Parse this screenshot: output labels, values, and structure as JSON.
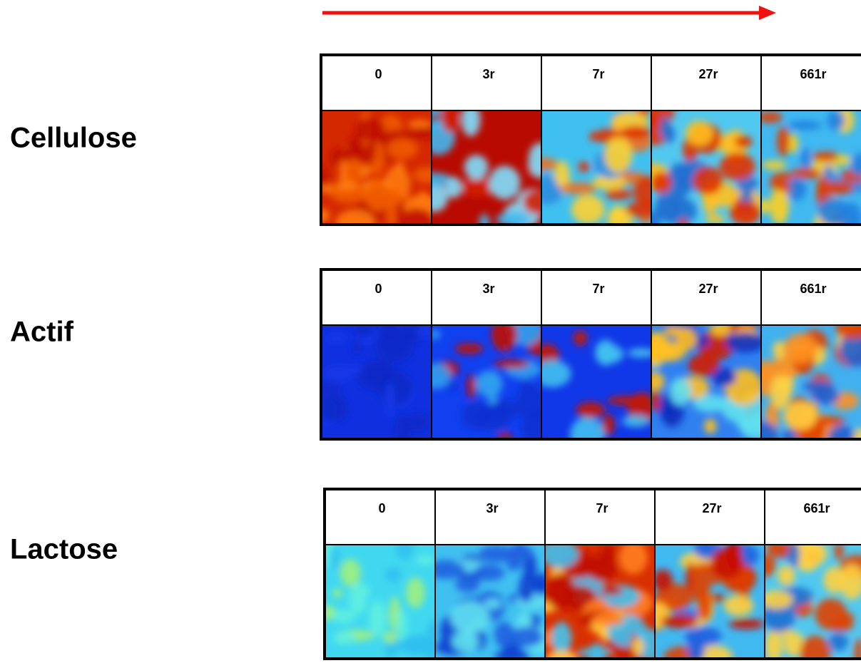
{
  "rows": [
    {
      "label": "Cellulose",
      "columns": [
        "0",
        "3r",
        "7r",
        "27r",
        "661r"
      ]
    },
    {
      "label": "Actif",
      "columns": [
        "0",
        "3r",
        "7r",
        "27r",
        "661r"
      ]
    },
    {
      "label": "Lactose",
      "columns": [
        "0",
        "3r",
        "7r",
        "27r",
        "661r"
      ]
    }
  ]
}
